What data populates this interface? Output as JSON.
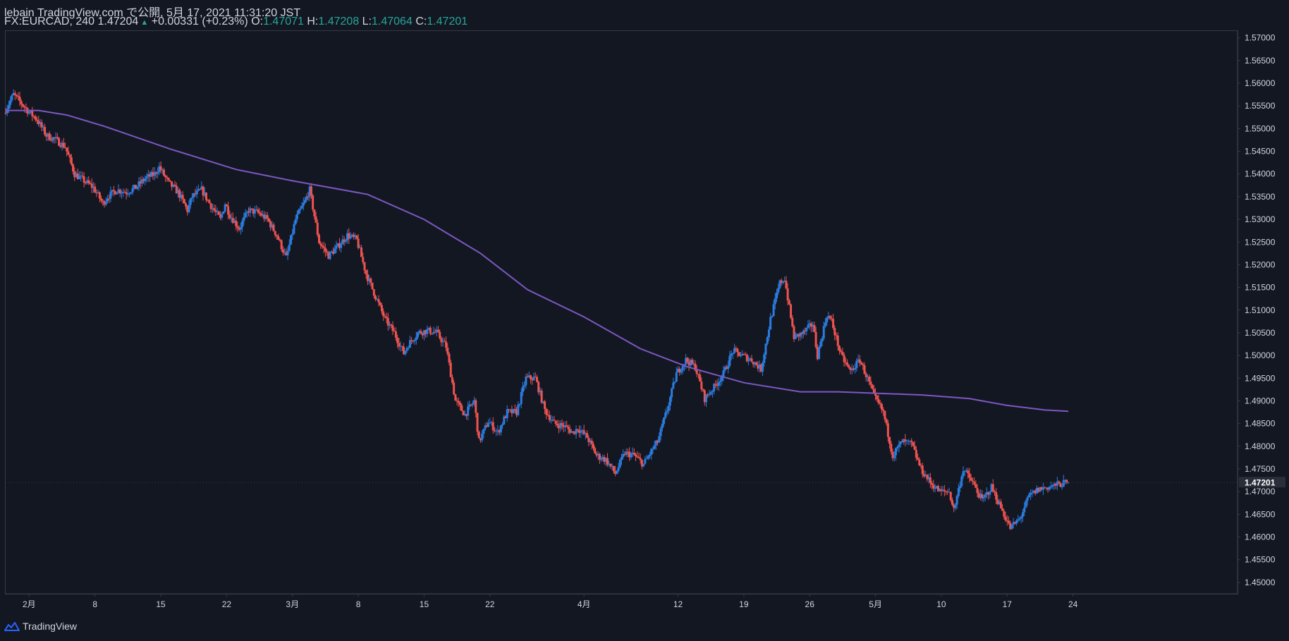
{
  "header": {
    "title": "lebain TradingView.com で公開, 5月 17, 2021 11:31:20 JST",
    "symbol_line": "FX:EURCAD, 240 1.47204",
    "change": "+0.00331 (+0.23%)",
    "o_label": "O:",
    "o_value": "1.47071",
    "h_label": "H:",
    "h_value": "1.47208",
    "l_label": "L:",
    "l_value": "1.47064",
    "c_label": "C:",
    "c_value": "1.47201"
  },
  "footer": {
    "brand": "TradingView"
  },
  "colors": {
    "up": "#2a7de1",
    "down": "#ef5350",
    "ma": "#7e57c2",
    "bg": "#131722",
    "grid": "#363a45",
    "text": "#d1d4dc"
  },
  "chart_data": {
    "type": "candlestick",
    "symbol": "FX:EURCAD",
    "interval": "240",
    "current_price": "1.47201",
    "y_ticks": [
      "1.57000",
      "1.56500",
      "1.56000",
      "1.55500",
      "1.55000",
      "1.54500",
      "1.54000",
      "1.53500",
      "1.53000",
      "1.52500",
      "1.52000",
      "1.51500",
      "1.51000",
      "1.50500",
      "1.50000",
      "1.49500",
      "1.49000",
      "1.48500",
      "1.48000",
      "1.47500",
      "1.47000",
      "1.46500",
      "1.46000",
      "1.45500",
      "1.45000"
    ],
    "ylim": [
      1.4475,
      1.5715
    ],
    "x_ticks": [
      "2月",
      "8",
      "15",
      "22",
      "3月",
      "8",
      "15",
      "22",
      "4月",
      "12",
      "19",
      "26",
      "5月",
      "10",
      "17",
      "24"
    ],
    "x_tick_days": [
      0,
      7,
      14,
      21,
      28,
      35,
      42,
      49,
      59,
      69,
      76,
      83,
      90,
      97,
      104,
      111
    ],
    "xlim": [
      -2.5,
      128.5
    ],
    "x_unit": "days since 2021-02-01 (label 2月 = 0)",
    "price_path": [
      [
        -2.5,
        1.5535
      ],
      [
        -1.5,
        1.5575
      ],
      [
        0,
        1.554
      ],
      [
        1,
        1.552
      ],
      [
        2,
        1.5485
      ],
      [
        3,
        1.5475
      ],
      [
        4,
        1.546
      ],
      [
        5,
        1.54
      ],
      [
        6,
        1.5385
      ],
      [
        7,
        1.537
      ],
      [
        8,
        1.5335
      ],
      [
        8.5,
        1.535
      ],
      [
        9.5,
        1.5365
      ],
      [
        10.5,
        1.536
      ],
      [
        11.5,
        1.537
      ],
      [
        12.5,
        1.539
      ],
      [
        13.5,
        1.54
      ],
      [
        14,
        1.5415
      ],
      [
        15,
        1.538
      ],
      [
        16,
        1.536
      ],
      [
        17,
        1.532
      ],
      [
        17.5,
        1.535
      ],
      [
        18.5,
        1.5365
      ],
      [
        19.5,
        1.533
      ],
      [
        20.5,
        1.53
      ],
      [
        21,
        1.5335
      ],
      [
        21.5,
        1.531
      ],
      [
        22.5,
        1.528
      ],
      [
        23.5,
        1.532
      ],
      [
        24.5,
        1.5315
      ],
      [
        25.5,
        1.53
      ],
      [
        26.5,
        1.5265
      ],
      [
        27.5,
        1.5215
      ],
      [
        28.5,
        1.53
      ],
      [
        29.5,
        1.534
      ],
      [
        30,
        1.5365
      ],
      [
        31,
        1.525
      ],
      [
        32,
        1.522
      ],
      [
        33,
        1.524
      ],
      [
        34,
        1.5265
      ],
      [
        35,
        1.5255
      ],
      [
        36,
        1.518
      ],
      [
        37,
        1.513
      ],
      [
        38,
        1.508
      ],
      [
        39,
        1.505
      ],
      [
        40,
        1.5005
      ],
      [
        40.5,
        1.5025
      ],
      [
        41.5,
        1.505
      ],
      [
        42.5,
        1.5055
      ],
      [
        43.5,
        1.505
      ],
      [
        44.5,
        1.502
      ],
      [
        45.5,
        1.49
      ],
      [
        46.5,
        1.487
      ],
      [
        47.5,
        1.49
      ],
      [
        48,
        1.481
      ],
      [
        49,
        1.4855
      ],
      [
        50,
        1.483
      ],
      [
        51,
        1.4875
      ],
      [
        52,
        1.4875
      ],
      [
        53,
        1.495
      ],
      [
        54,
        1.495
      ],
      [
        55,
        1.488
      ],
      [
        56,
        1.485
      ],
      [
        57,
        1.4845
      ],
      [
        58,
        1.483
      ],
      [
        58.5,
        1.484
      ],
      [
        59.5,
        1.482
      ],
      [
        60.5,
        1.478
      ],
      [
        61.5,
        1.477
      ],
      [
        62.5,
        1.474
      ],
      [
        63.5,
        1.4785
      ],
      [
        64.5,
        1.478
      ],
      [
        65.5,
        1.476
      ],
      [
        66.5,
        1.4795
      ],
      [
        67,
        1.481
      ],
      [
        68,
        1.488
      ],
      [
        69,
        1.496
      ],
      [
        70,
        1.499
      ],
      [
        71,
        1.4975
      ],
      [
        72,
        1.4905
      ],
      [
        73,
        1.493
      ],
      [
        74,
        1.496
      ],
      [
        75,
        1.501
      ],
      [
        76,
        1.5
      ],
      [
        77,
        1.499
      ],
      [
        78,
        1.497
      ],
      [
        79,
        1.508
      ],
      [
        80,
        1.516
      ],
      [
        80.5,
        1.517
      ],
      [
        81.5,
        1.504
      ],
      [
        82.5,
        1.505
      ],
      [
        83.5,
        1.507
      ],
      [
        84,
        1.5
      ],
      [
        85,
        1.509
      ],
      [
        85.5,
        1.5075
      ],
      [
        86.5,
        1.5
      ],
      [
        87.5,
        1.4965
      ],
      [
        88.5,
        1.499
      ],
      [
        89.5,
        1.494
      ],
      [
        90,
        1.491
      ],
      [
        91,
        1.4875
      ],
      [
        92,
        1.478
      ],
      [
        93,
        1.481
      ],
      [
        94,
        1.4805
      ],
      [
        95,
        1.475
      ],
      [
        96,
        1.472
      ],
      [
        97,
        1.47
      ],
      [
        98,
        1.47
      ],
      [
        98.5,
        1.466
      ],
      [
        99.5,
        1.475
      ],
      [
        100.5,
        1.472
      ],
      [
        101.5,
        1.468
      ],
      [
        102.5,
        1.471
      ],
      [
        103.5,
        1.4665
      ],
      [
        104.5,
        1.462
      ],
      [
        105.5,
        1.464
      ],
      [
        106.5,
        1.469
      ],
      [
        107.5,
        1.4705
      ],
      [
        108.5,
        1.471
      ],
      [
        109.5,
        1.4715
      ],
      [
        110.5,
        1.472
      ]
    ],
    "ma_path": [
      [
        -2.5,
        1.554
      ],
      [
        1,
        1.554
      ],
      [
        4,
        1.553
      ],
      [
        8,
        1.5505
      ],
      [
        15,
        1.5455
      ],
      [
        22,
        1.541
      ],
      [
        28,
        1.5385
      ],
      [
        32,
        1.537
      ],
      [
        36,
        1.5355
      ],
      [
        42,
        1.53
      ],
      [
        48,
        1.5225
      ],
      [
        53,
        1.5145
      ],
      [
        59,
        1.5085
      ],
      [
        65,
        1.5015
      ],
      [
        70,
        1.4975
      ],
      [
        76,
        1.494
      ],
      [
        82,
        1.492
      ],
      [
        86,
        1.492
      ],
      [
        90,
        1.4917
      ],
      [
        95,
        1.4913
      ],
      [
        100,
        1.4905
      ],
      [
        104,
        1.489
      ],
      [
        108,
        1.488
      ],
      [
        110.5,
        1.4877
      ]
    ]
  }
}
